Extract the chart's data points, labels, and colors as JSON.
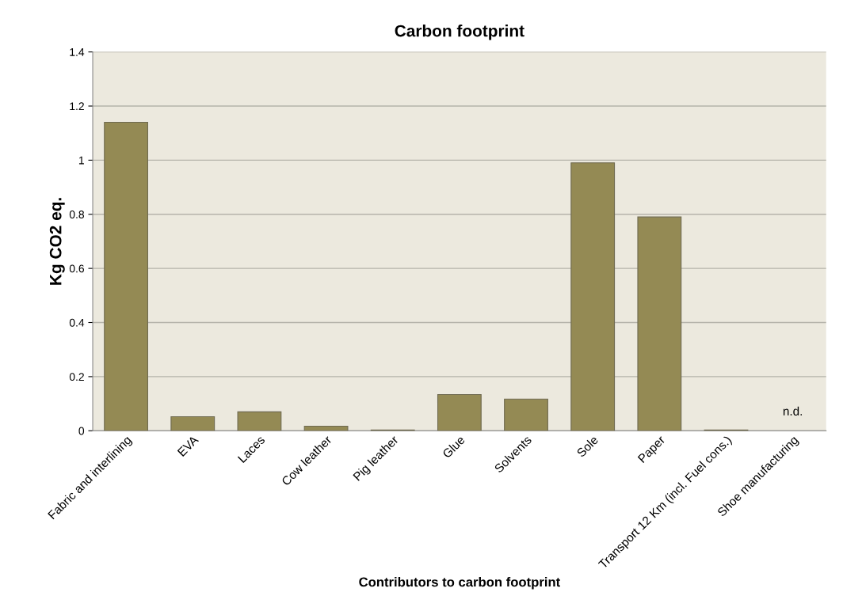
{
  "chart_data": {
    "type": "bar",
    "title": "Carbon footprint",
    "xlabel": "Contributors to carbon footprint",
    "ylabel": "Kg CO2 eq.",
    "categories": [
      "Fabric and interlining",
      "EVA",
      "Laces",
      "Cow leather",
      "Pig leather",
      "Glue",
      "Solvents",
      "Sole",
      "Paper",
      "Transport 12 Km (incl. Fuel cons.)",
      "Shoe manufacturing"
    ],
    "values": [
      1.14,
      0.052,
      0.07,
      0.017,
      0.003,
      0.134,
      0.117,
      0.99,
      0.79,
      0.003,
      null
    ],
    "color": "#948a54",
    "ylim": [
      0,
      1.4
    ],
    "yticks": [
      0,
      0.2,
      0.4,
      0.6,
      0.8,
      1,
      1.2,
      1.4
    ],
    "grid": "y",
    "annotations": [
      "n.d."
    ]
  }
}
